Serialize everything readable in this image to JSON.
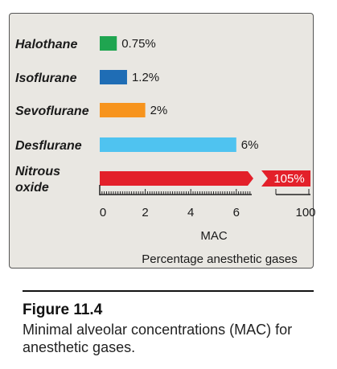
{
  "chart_data": {
    "type": "bar",
    "orientation": "horizontal",
    "categories": [
      "Halothane",
      "Isoflurane",
      "Sevoflurane",
      "Desflurane",
      "Nitrous oxide"
    ],
    "values": [
      0.75,
      1.2,
      2,
      6,
      105
    ],
    "value_labels": [
      "0.75%",
      "1.2%",
      "2%",
      "6%",
      "105%"
    ],
    "colors": [
      "#1fa550",
      "#1f6db5",
      "#f7941d",
      "#4fc3f0",
      "#e3202a"
    ],
    "xlabel": "MAC",
    "x_ticks": [
      "0",
      "2",
      "4",
      "6",
      "100"
    ],
    "xlim": [
      0,
      6
    ],
    "axis_break": true,
    "footer": "Percentage anesthetic gases"
  },
  "figure": {
    "number": "Figure 11.4",
    "caption": "Minimal alveolar concentrations (MAC) for anesthetic gases."
  }
}
